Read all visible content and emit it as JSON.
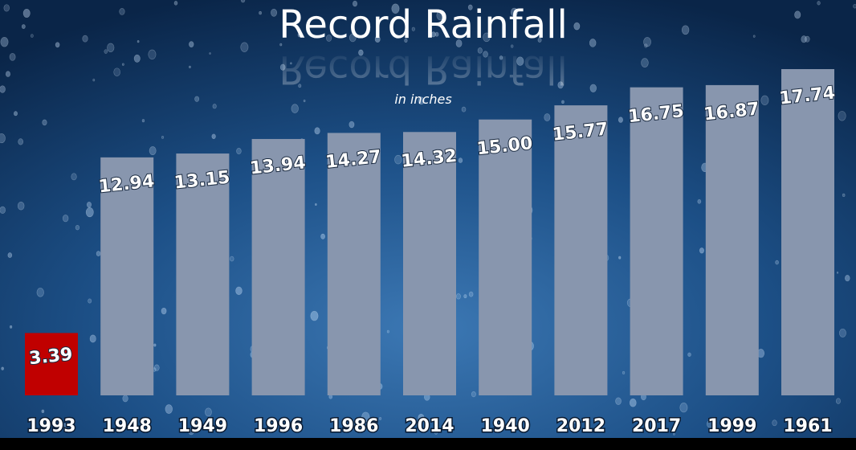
{
  "chart_data": {
    "type": "bar",
    "title": "Record Rainfall",
    "subtitle": "in inches",
    "categories": [
      "1993",
      "1948",
      "1949",
      "1996",
      "1986",
      "2014",
      "1940",
      "2012",
      "2017",
      "1999",
      "1961"
    ],
    "values": [
      3.39,
      12.94,
      13.15,
      13.94,
      14.27,
      14.32,
      15.0,
      15.77,
      16.75,
      16.87,
      17.74
    ],
    "value_labels": [
      "3.39",
      "12.94",
      "13.15",
      "13.94",
      "14.27",
      "14.32",
      "15.00",
      "15.77",
      "16.75",
      "16.87",
      "17.74"
    ],
    "colors": [
      "#c00000",
      "#8896ae",
      "#8896ae",
      "#8896ae",
      "#8896ae",
      "#8896ae",
      "#8896ae",
      "#8896ae",
      "#8896ae",
      "#8896ae",
      "#8896ae"
    ]
  }
}
